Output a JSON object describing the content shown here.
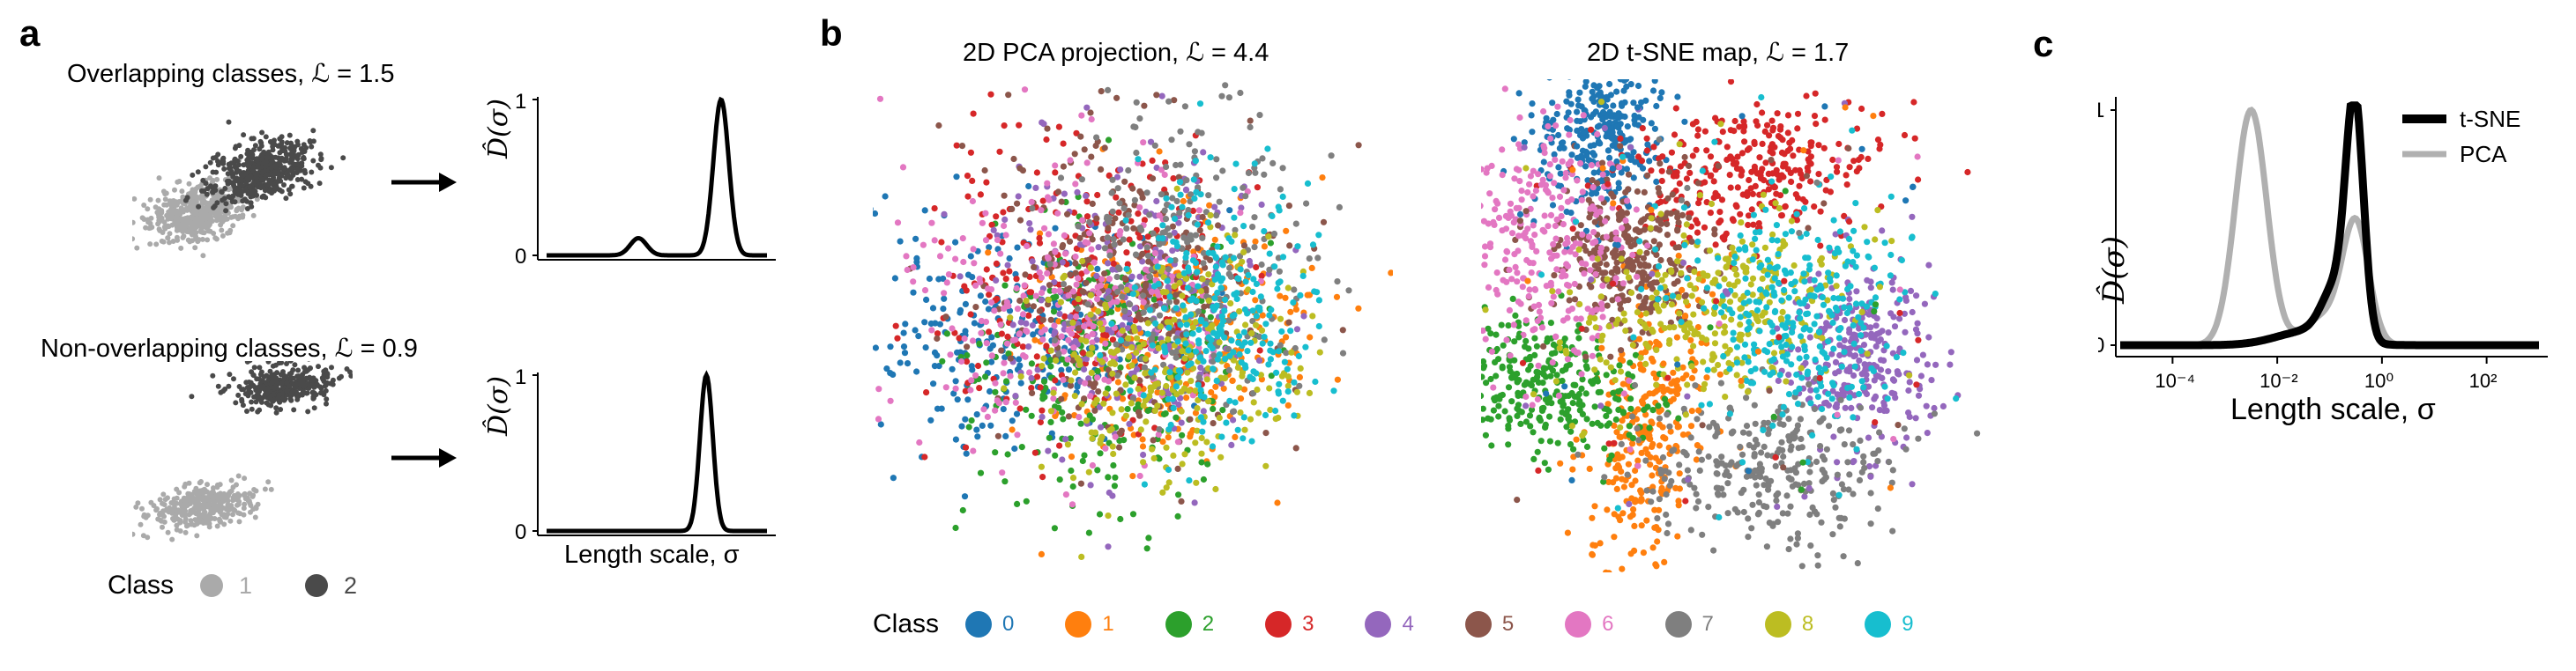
{
  "panel_labels": {
    "a": "a",
    "b": "b",
    "c": "c"
  },
  "panel_a": {
    "top_title": "Overlapping classes, ℒ = 1.5",
    "bottom_title": "Non-overlapping classes, ℒ = 0.9",
    "xlabel": "Length scale, σ",
    "ylabel": "D̂(σ)",
    "legend_title": "Class",
    "legend_items": [
      {
        "label": "1",
        "color": "#aaaaaa"
      },
      {
        "label": "2",
        "color": "#4a4a4a"
      }
    ]
  },
  "panel_b": {
    "left_title": "2D PCA projection, ℒ = 4.4",
    "right_title": "2D t-SNE map, ℒ = 1.7",
    "legend_title": "Class",
    "classes": [
      {
        "label": "0",
        "color": "#1f77b4"
      },
      {
        "label": "1",
        "color": "#ff7f0e"
      },
      {
        "label": "2",
        "color": "#2ca02c"
      },
      {
        "label": "3",
        "color": "#d62728"
      },
      {
        "label": "4",
        "color": "#9467bd"
      },
      {
        "label": "5",
        "color": "#8c564b"
      },
      {
        "label": "6",
        "color": "#e377c2"
      },
      {
        "label": "7",
        "color": "#7f7f7f"
      },
      {
        "label": "8",
        "color": "#bcbd22"
      },
      {
        "label": "9",
        "color": "#17becf"
      }
    ]
  },
  "chart_data": [
    {
      "type": "line",
      "yticks": [
        0,
        1
      ],
      "series": [
        {
          "x": [
            -6,
            -3,
            -1,
            0,
            2,
            3.5,
            4.5,
            6
          ],
          "y": [
            0,
            0,
            0.11,
            0,
            0,
            1,
            0,
            0
          ],
          "color": "#000000"
        }
      ],
      "xlabel": "",
      "ylabel": "D̂(σ)"
    },
    {
      "type": "line",
      "yticks": [
        0,
        1
      ],
      "series": [
        {
          "x": [
            -6,
            -1,
            1.5,
            2.7,
            4,
            6
          ],
          "y": [
            0,
            0,
            0,
            1,
            0,
            0
          ],
          "color": "#000000"
        }
      ],
      "xlabel": "Length scale, σ",
      "ylabel": "D̂(σ)"
    },
    {
      "type": "line",
      "xscale": "log",
      "xlim": [
        1e-05,
        1000
      ],
      "ylim": [
        0,
        1.05
      ],
      "xticks": [
        "10⁻⁴",
        "10⁻²",
        "10⁰",
        "10²"
      ],
      "yticks": [
        0,
        1
      ],
      "xlabel": "Length scale, σ",
      "ylabel": "D̂(σ)",
      "legend": "top-right",
      "series": [
        {
          "name": "t-SNE",
          "color": "#000000",
          "x": [
            1e-05,
            0.001,
            0.01,
            0.05,
            0.1,
            0.2,
            0.3,
            0.5,
            1,
            2,
            10,
            1000
          ],
          "y": [
            0,
            0.01,
            0.04,
            0.1,
            0.2,
            0.6,
            1,
            0.6,
            0.08,
            0.01,
            0,
            0
          ]
        },
        {
          "name": "PCA",
          "color": "#b0b0b0",
          "x": [
            1e-05,
            0.0003,
            0.001,
            0.003,
            0.007,
            0.02,
            0.05,
            0.1,
            0.2,
            0.3,
            0.5,
            1,
            3,
            1000
          ],
          "y": [
            0,
            0.02,
            0.35,
            1,
            0.4,
            0.05,
            0.1,
            0.25,
            0.4,
            0.5,
            0.3,
            0.05,
            0.01,
            0
          ]
        }
      ]
    }
  ]
}
